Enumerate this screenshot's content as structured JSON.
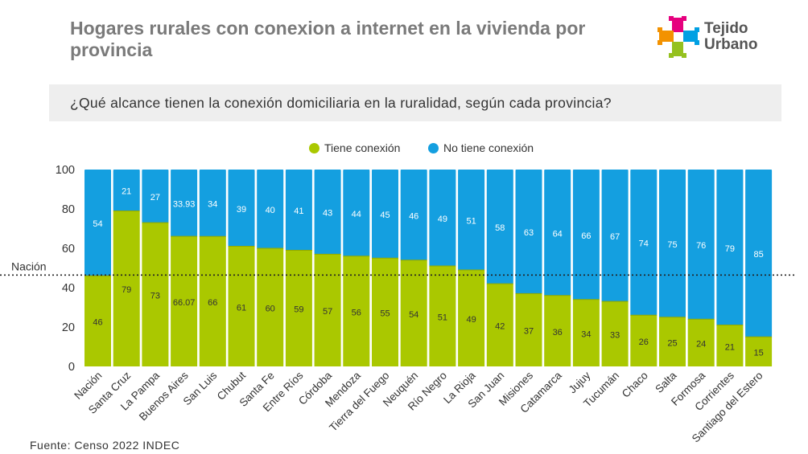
{
  "header": {
    "title": "Hogares rurales con conexion a internet en la vivienda por provincia",
    "logo_line1": "Tejido",
    "logo_line2": "Urbano"
  },
  "question": "¿Qué alcance tienen la conexión domiciliaria en la ruralidad, según cada provincia?",
  "source": "Fuente: Censo 2022 INDEC",
  "colors": {
    "green": "#aac800",
    "blue": "#149fe0",
    "title": "#7a7a7a",
    "question_bg": "#eeeeee"
  },
  "chart_data": {
    "type": "bar",
    "stacked": true,
    "categories": [
      "Nación",
      "Santa Cruz",
      "La Pampa",
      "Buenos Aires",
      "San Luis",
      "Chubut",
      "Santa Fe",
      "Entre Ríos",
      "Córdoba",
      "Mendoza",
      "Tierra del Fuego",
      "Neuquén",
      "Río Negro",
      "La Rioja",
      "San Juan",
      "Misiones",
      "Catamarca",
      "Jujuy",
      "Tucumán",
      "Chaco",
      "Salta",
      "Formosa",
      "Corrientes",
      "Santiago del Estero"
    ],
    "series": [
      {
        "name": "Tiene conexión",
        "color": "#aac800",
        "values": [
          46,
          79,
          73,
          66.07,
          66,
          61,
          60,
          59,
          57,
          56,
          55,
          54,
          51,
          49,
          42,
          37,
          36,
          34,
          33,
          26,
          25,
          24,
          21,
          15
        ]
      },
      {
        "name": "No tiene conexión",
        "color": "#149fe0",
        "values": [
          54,
          21,
          27,
          33.93,
          34,
          39,
          40,
          41,
          43,
          44,
          45,
          46,
          49,
          51,
          58,
          63,
          64,
          66,
          67,
          74,
          75,
          76,
          79,
          85
        ]
      }
    ],
    "value_labels": {
      "tiene": [
        "46",
        "79",
        "73",
        "66.07",
        "66",
        "61",
        "60",
        "59",
        "57",
        "56",
        "55",
        "54",
        "51",
        "49",
        "42",
        "37",
        "36",
        "34",
        "33",
        "26",
        "25",
        "24",
        "21",
        "15"
      ],
      "no_tiene": [
        "54",
        "21",
        "27",
        "33.93",
        "34",
        "39",
        "40",
        "41",
        "43",
        "44",
        "45",
        "46",
        "49",
        "51",
        "58",
        "63",
        "64",
        "66",
        "67",
        "74",
        "75",
        "76",
        "79",
        "85"
      ]
    },
    "ylim": [
      0,
      100
    ],
    "yticks": [
      "0",
      "20",
      "40",
      "60",
      "80",
      "100"
    ],
    "reference_line": {
      "label": "Nación",
      "value": 46
    },
    "legend_position": "top-center",
    "grid": false
  }
}
